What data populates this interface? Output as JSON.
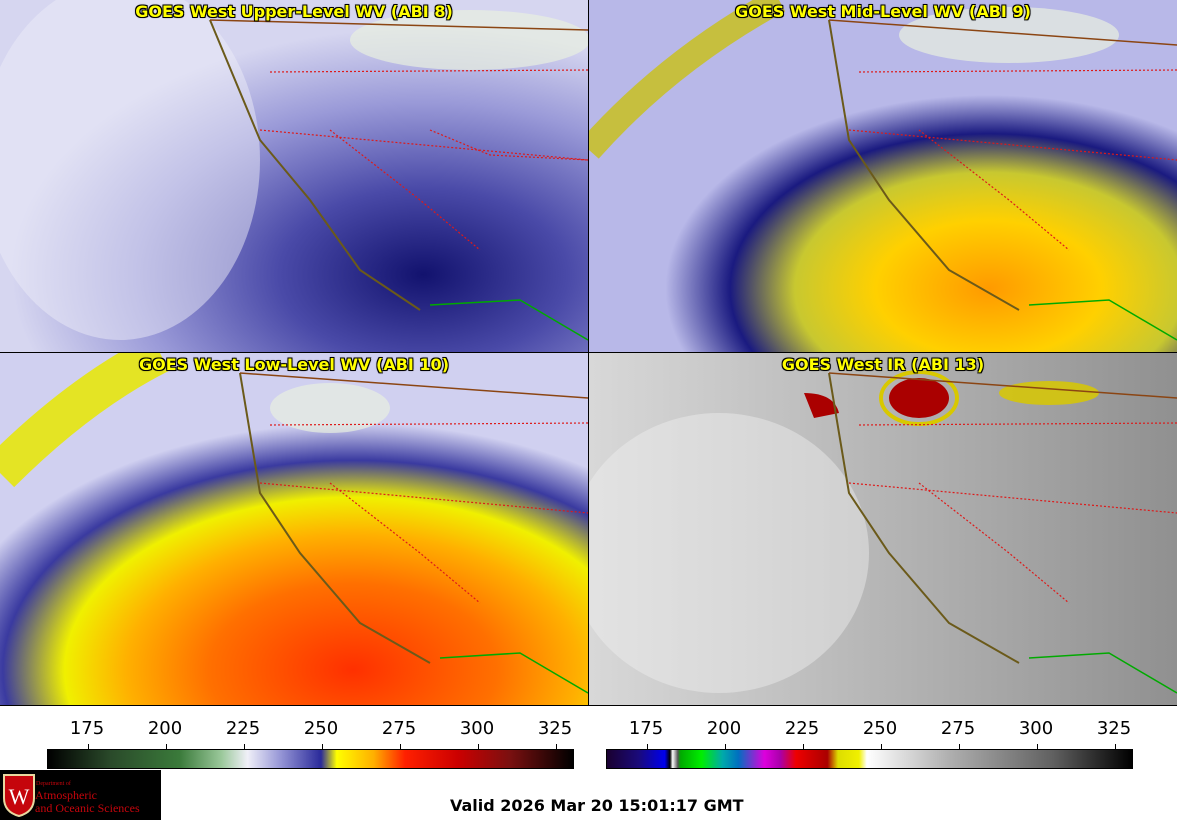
{
  "panels": [
    {
      "title": "GOES West Upper-Level WV (ABI 8)"
    },
    {
      "title": "GOES West Mid-Level WV (ABI 9)"
    },
    {
      "title": "GOES West Low-Level WV (ABI 10)"
    },
    {
      "title": "GOES West IR (ABI 13)"
    }
  ],
  "colorbars": {
    "left": {
      "ticks": [
        "175",
        "200",
        "225",
        "250",
        "275",
        "300",
        "325"
      ],
      "range": [
        162,
        333
      ]
    },
    "right": {
      "ticks": [
        "175",
        "200",
        "225",
        "250",
        "275",
        "300",
        "325"
      ],
      "range": [
        162,
        333
      ]
    }
  },
  "logo": {
    "line1": "Department of",
    "line2": "Atmospheric",
    "line3": "and Oceanic Sciences"
  },
  "valid_time": "Valid 2026 Mar 20 15:01:17 GMT",
  "colors": {
    "title": "#ffff00",
    "state_lines": "#dd1a1a",
    "coast": "#6b5a1a",
    "mexico": "#00aa00"
  }
}
